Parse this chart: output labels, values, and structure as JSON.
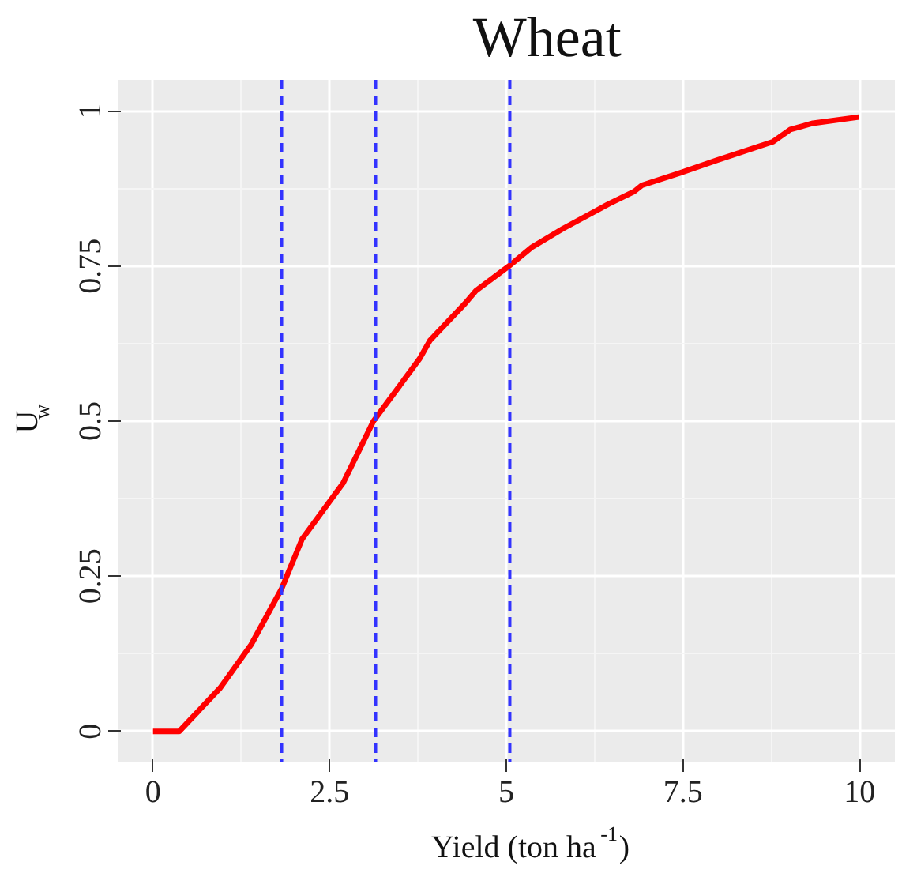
{
  "chart_data": {
    "type": "line",
    "title": "Wheat",
    "xlabel": "Yield (ton ha$^{-1}$)",
    "ylabel": "U$_{w}$",
    "x": [
      0,
      0.37,
      0.95,
      1.39,
      1.82,
      2.11,
      2.69,
      3.12,
      3.77,
      3.92,
      4.42,
      4.57,
      5.04,
      5.36,
      5.8,
      6.45,
      6.81,
      6.92,
      7.46,
      7.97,
      8.77,
      9.02,
      9.34,
      9.99
    ],
    "series": [
      {
        "color": "#ff0000",
        "values": [
          0,
          0,
          0.07,
          0.14,
          0.23,
          0.31,
          0.4,
          0.5,
          0.6,
          0.63,
          0.69,
          0.71,
          0.75,
          0.78,
          0.81,
          0.85,
          0.87,
          0.88,
          0.9,
          0.92,
          0.95,
          0.97,
          0.98,
          0.99
        ]
      }
    ],
    "xlim": [
      -0.5,
      10.5
    ],
    "ylim": [
      -0.05,
      1.05
    ],
    "xticks": [
      0,
      2.5,
      5,
      7.5,
      10
    ],
    "yticks": [
      0,
      0.25,
      0.5,
      0.75,
      1
    ],
    "grid": true,
    "line_style": "solid",
    "ref_lines": [
      {
        "axis": "x",
        "value": 1.82,
        "color": "#3333ff",
        "line_style": "dashed"
      },
      {
        "axis": "x",
        "value": 3.15,
        "color": "#3333ff",
        "line_style": "dashed"
      },
      {
        "axis": "x",
        "value": 5.05,
        "color": "#3333ff",
        "line_style": "dashed"
      }
    ]
  }
}
